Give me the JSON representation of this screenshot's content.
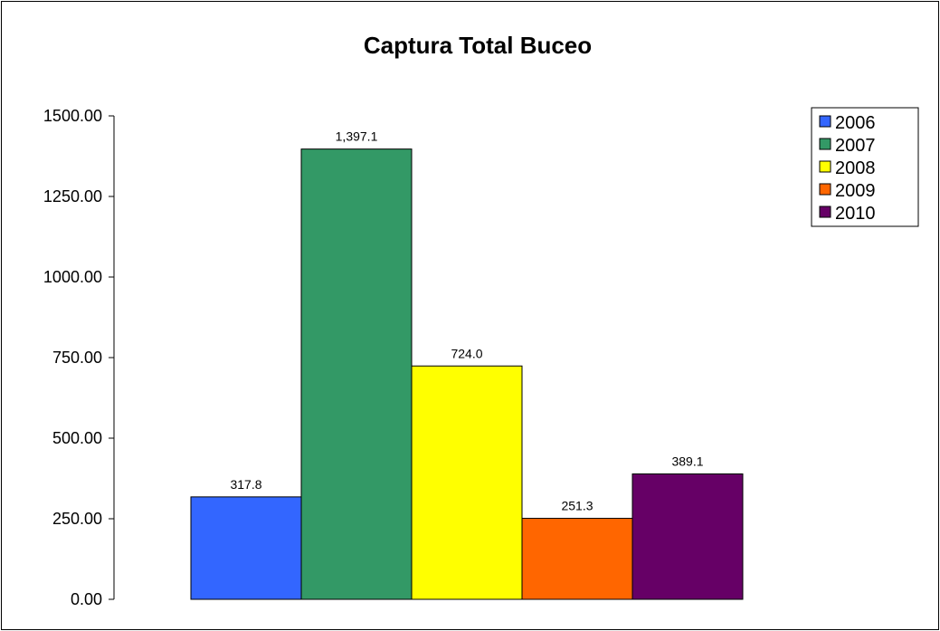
{
  "chart_data": {
    "type": "bar",
    "title": "Captura Total Buceo",
    "xlabel": "",
    "ylabel": "",
    "ylim": [
      0,
      1500
    ],
    "yticks": [
      "0.00",
      "250.00",
      "500.00",
      "750.00",
      "1000.00",
      "1250.00",
      "1500.00"
    ],
    "ytick_values": [
      0,
      250,
      500,
      750,
      1000,
      1250,
      1500
    ],
    "grid": false,
    "legend_position": "top-right",
    "series": [
      {
        "name": "2006",
        "value": 317.8,
        "label": "317.8",
        "color": "#3366ff"
      },
      {
        "name": "2007",
        "value": 1397.1,
        "label": "1,397.1",
        "color": "#339966"
      },
      {
        "name": "2008",
        "value": 724.0,
        "label": "724.0",
        "color": "#ffff00"
      },
      {
        "name": "2009",
        "value": 251.3,
        "label": "251.3",
        "color": "#ff6600"
      },
      {
        "name": "2010",
        "value": 389.1,
        "label": "389.1",
        "color": "#660066"
      }
    ]
  }
}
